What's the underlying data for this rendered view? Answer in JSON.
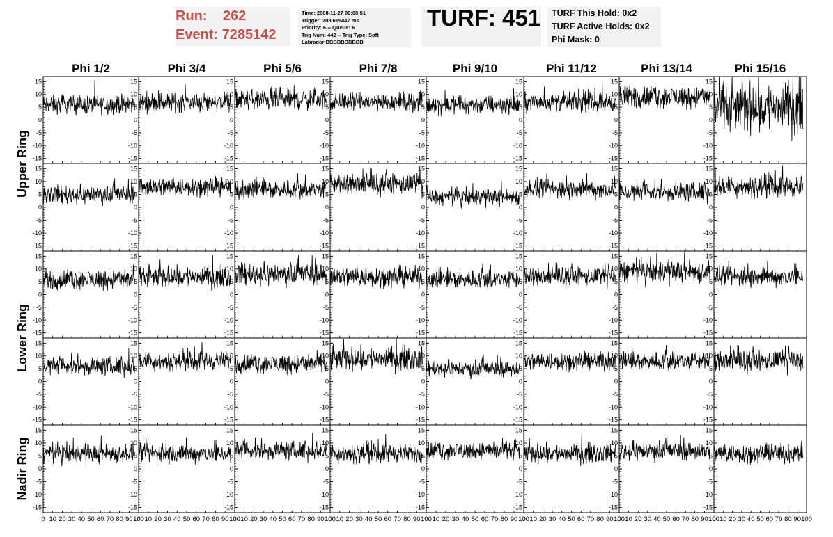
{
  "run_label": "Run:",
  "run_value": "262",
  "event_label": "Event:",
  "event_value": "7285142",
  "info_lines": [
    "Time: 2008-11-27 00:08:51",
    "Trigger: 208.619447 ms",
    "Priority: 6 -- Queue: 6",
    "Trig Num: 442 -- Trig Type: Soft",
    "Labrador BBBBBBBBBB"
  ],
  "turf_title": "TURF: 451",
  "turf_lines": [
    "TURF This Hold: 0x2",
    "TURF Active Holds: 0x2",
    "Phi Mask: 0"
  ],
  "chart_data": {
    "type": "line",
    "title": "",
    "columns": [
      "Phi 1/2",
      "Phi 3/4",
      "Phi 5/6",
      "Phi 7/8",
      "Phi 9/10",
      "Phi 11/12",
      "Phi 13/14",
      "Phi 15/16"
    ],
    "row_groups": [
      {
        "label": "Upper Ring",
        "rows": [
          0,
          1
        ]
      },
      {
        "label": "Lower Ring",
        "rows": [
          2,
          3
        ]
      },
      {
        "label": "Nadir Ring",
        "rows": [
          4
        ]
      }
    ],
    "rows": 5,
    "xlim": [
      0,
      100
    ],
    "ylim": [
      -17,
      17
    ],
    "x_ticks": [
      0,
      10,
      20,
      30,
      40,
      50,
      60,
      70,
      80,
      90,
      100
    ],
    "y_ticks": [
      -15,
      -10,
      -5,
      0,
      5,
      10,
      15
    ],
    "points_per_panel": 260,
    "panel_baselines": [
      [
        6,
        7,
        8,
        7,
        6,
        7,
        9,
        5
      ],
      [
        5,
        8,
        7,
        9,
        4,
        7,
        6,
        8
      ],
      [
        6,
        7,
        8,
        7,
        6,
        7,
        9,
        7
      ],
      [
        6,
        8,
        7,
        9,
        5,
        8,
        8,
        8
      ],
      [
        6,
        6,
        7,
        6,
        7,
        6,
        7,
        6
      ]
    ],
    "panel_spreads": [
      [
        1.8,
        1.9,
        2.0,
        1.8,
        1.8,
        1.8,
        2.2,
        4.8
      ],
      [
        1.8,
        1.8,
        1.8,
        2.0,
        1.6,
        1.8,
        1.8,
        2.0
      ],
      [
        2.0,
        2.0,
        2.2,
        2.0,
        1.8,
        1.8,
        2.2,
        1.8
      ],
      [
        1.8,
        1.8,
        1.9,
        2.2,
        1.6,
        1.8,
        1.8,
        2.0
      ],
      [
        1.8,
        1.8,
        1.8,
        1.8,
        1.8,
        1.8,
        1.8,
        1.8
      ]
    ]
  }
}
